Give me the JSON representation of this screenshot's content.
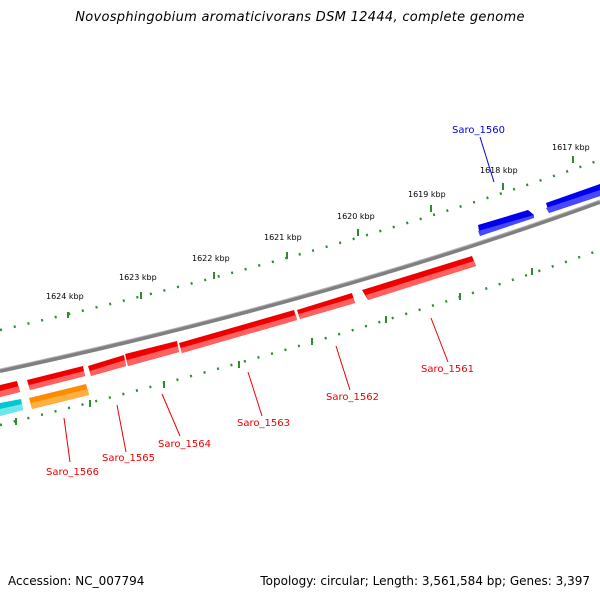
{
  "title": "Novosphingobium aromaticivorans DSM 12444, complete genome",
  "footer": {
    "accession": "Accession: NC_007794",
    "stats": "Topology: circular; Length: 3,561,584 bp; Genes: 3,397"
  },
  "scale_labels": [
    "1617 kbp",
    "1618 kbp",
    "1619 kbp",
    "1620 kbp",
    "1621 kbp",
    "1622 kbp",
    "1623 kbp",
    "1624 kbp"
  ],
  "genes": [
    {
      "name": "Saro_1560",
      "strand": "forward",
      "color": "#0000ee"
    },
    {
      "name": "Saro_1561",
      "strand": "reverse",
      "color": "#ee0000"
    },
    {
      "name": "Saro_1562",
      "strand": "reverse",
      "color": "#ee0000"
    },
    {
      "name": "Saro_1563",
      "strand": "reverse",
      "color": "#ee0000"
    },
    {
      "name": "Saro_1564",
      "strand": "reverse",
      "color": "#ee0000"
    },
    {
      "name": "Saro_1565",
      "strand": "reverse",
      "color": "#ee0000"
    },
    {
      "name": "Saro_1566",
      "strand": "reverse",
      "color": "#ee0000"
    },
    {
      "name": "unlabeled-orange",
      "strand": "reverse",
      "color": "#ff8c00"
    },
    {
      "name": "unlabeled-cyan",
      "strand": "reverse",
      "color": "#00c8d0"
    }
  ],
  "colors": {
    "backbone": "#808080",
    "tick": "#2e8b2e",
    "forward_gene": "#0000ee",
    "reverse_gene": "#ee0000"
  }
}
